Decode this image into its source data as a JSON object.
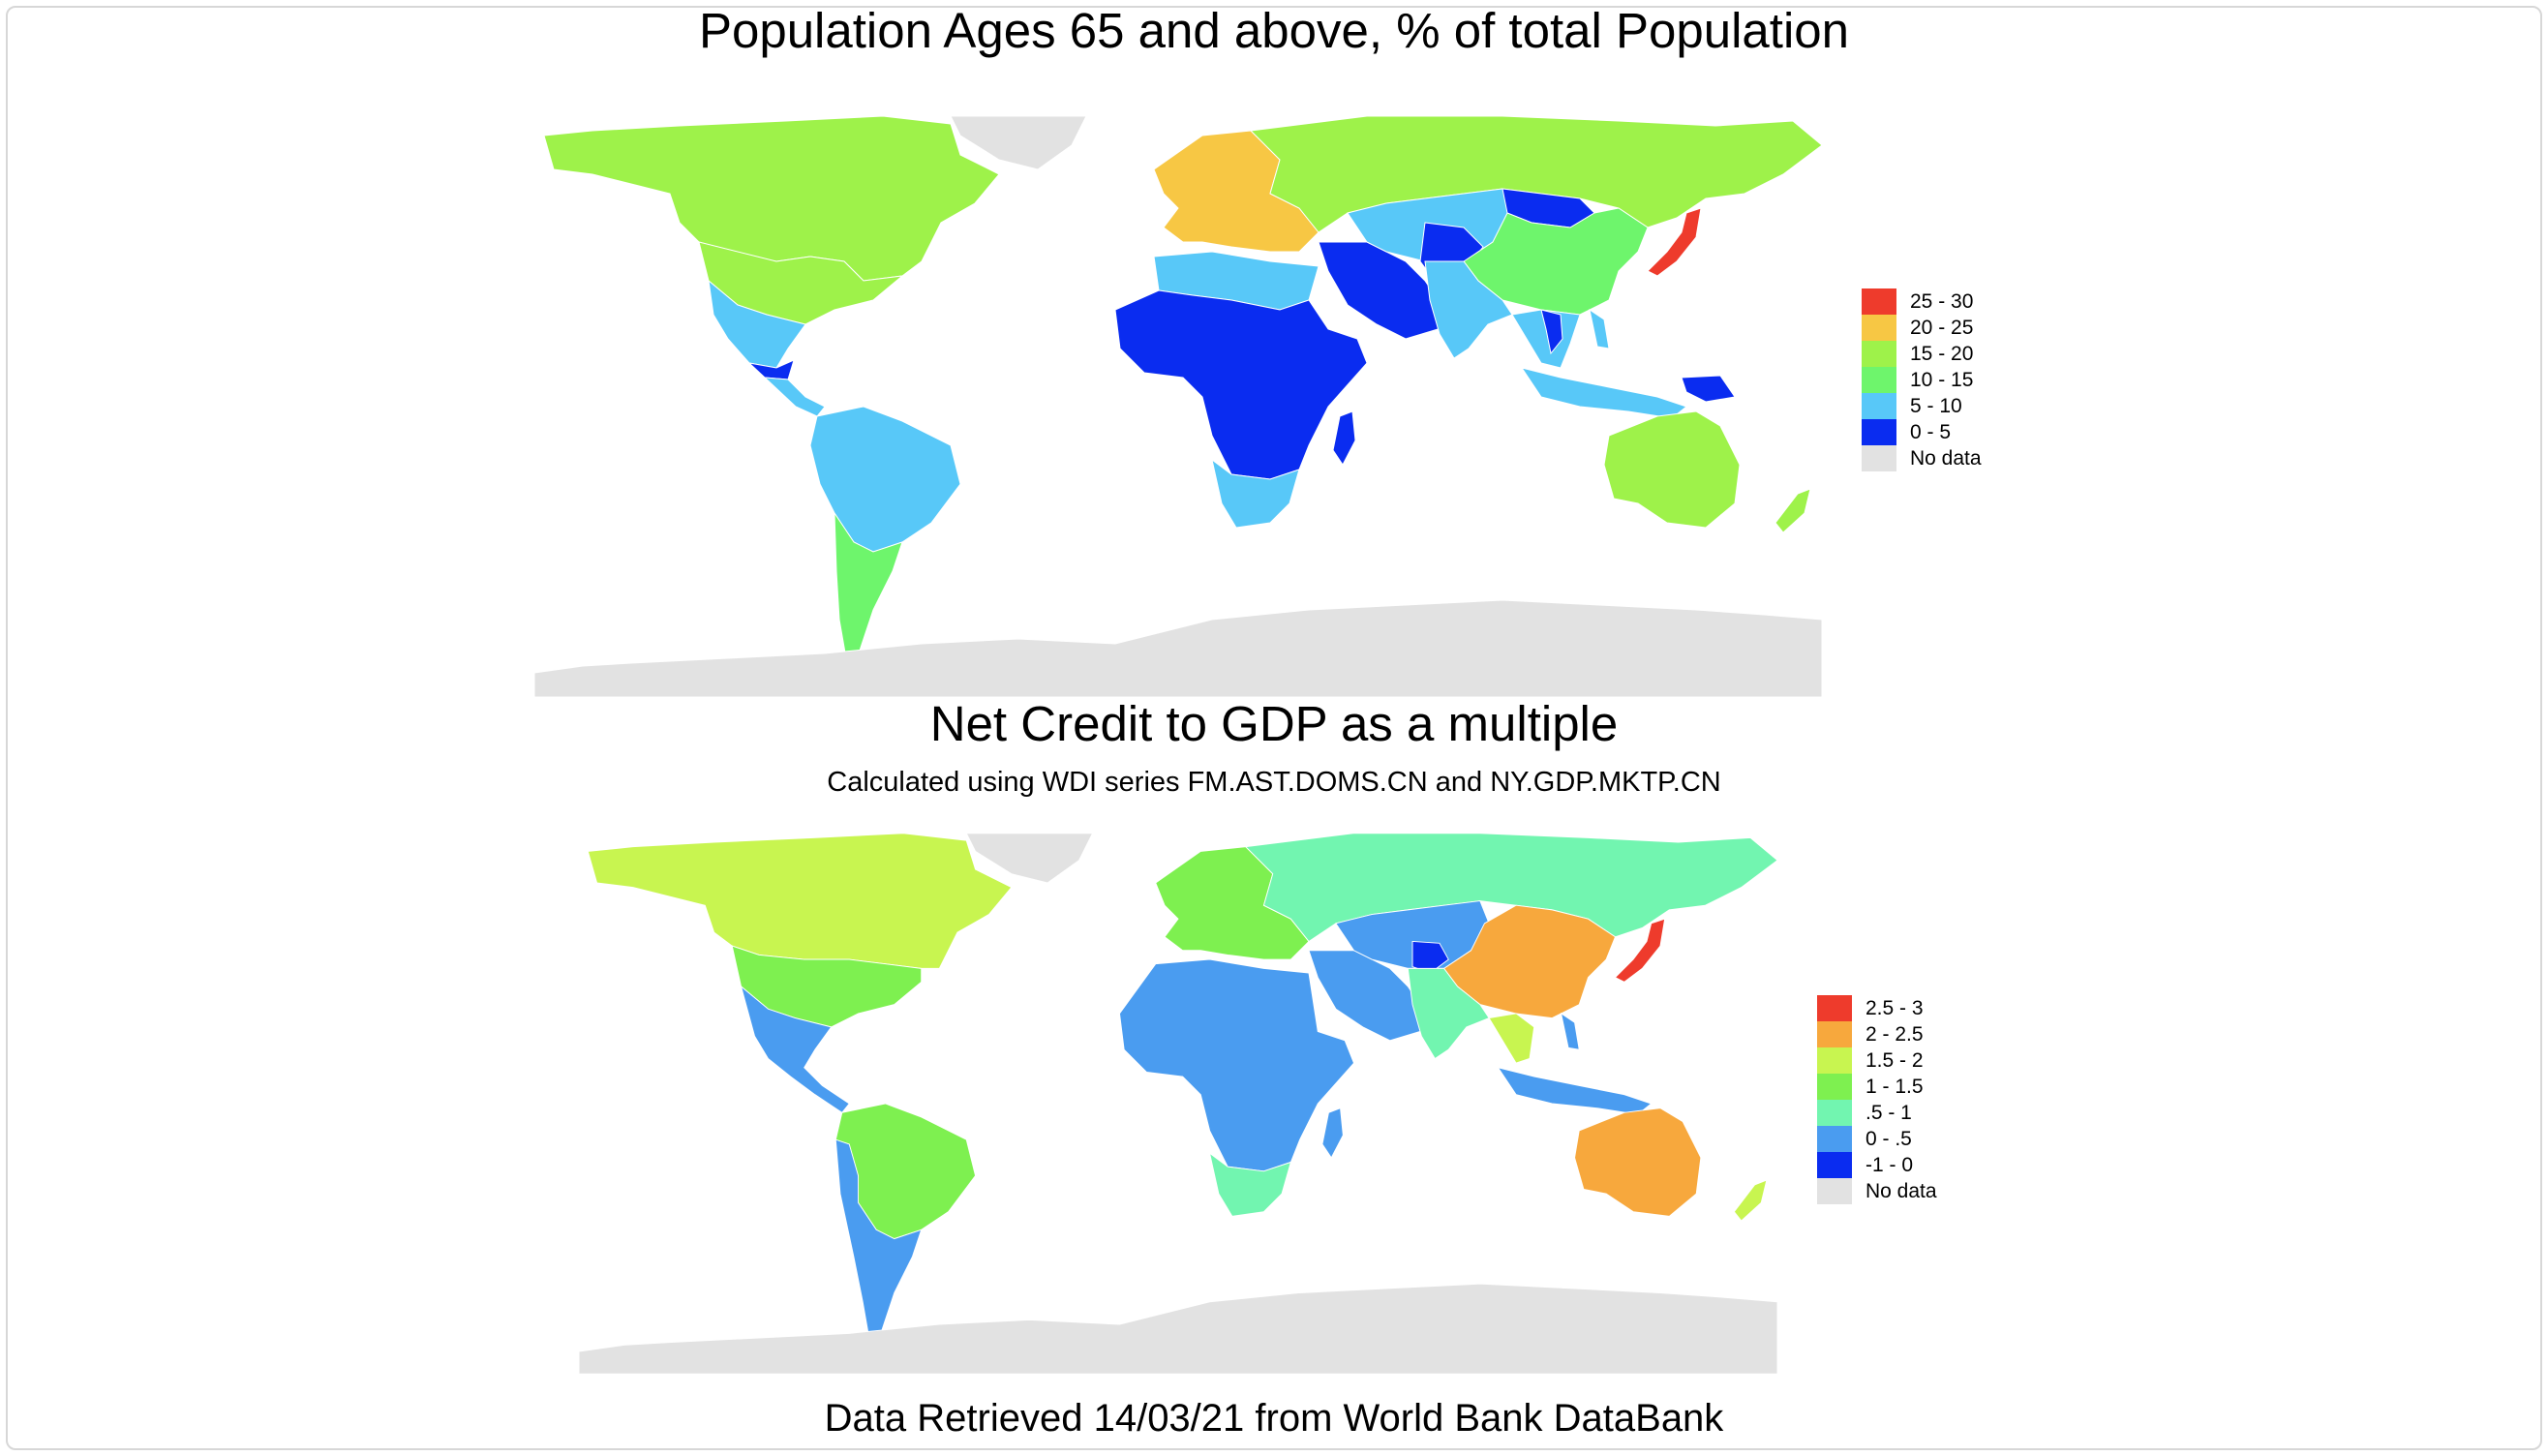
{
  "map1": {
    "title": "Population Ages 65 and above, % of total Population",
    "legend": [
      {
        "label": "25 - 30",
        "color": "#ee3b2c"
      },
      {
        "label": "20 - 25",
        "color": "#f7c744"
      },
      {
        "label": "15 - 20",
        "color": "#9ef24a"
      },
      {
        "label": "10 - 15",
        "color": "#6ef56c"
      },
      {
        "label": "5 - 10",
        "color": "#58c8f8"
      },
      {
        "label": "0 - 5",
        "color": "#0a2cf0"
      },
      {
        "label": "No data",
        "color": "#e2e2e2"
      }
    ],
    "regions": [
      {
        "name": "greenland",
        "fill": "#e2e2e2"
      },
      {
        "name": "north-america",
        "fill": "#9ef24a"
      },
      {
        "name": "central-america",
        "fill": "#58c8f8"
      },
      {
        "name": "guatemala",
        "fill": "#0a2cf0"
      },
      {
        "name": "south-america",
        "fill": "#58c8f8"
      },
      {
        "name": "southern-cone",
        "fill": "#6ef56c"
      },
      {
        "name": "western-europe",
        "fill": "#f7c744"
      },
      {
        "name": "russia",
        "fill": "#9ef24a"
      },
      {
        "name": "north-africa",
        "fill": "#58c8f8"
      },
      {
        "name": "sub-saharan-africa",
        "fill": "#0a2cf0"
      },
      {
        "name": "southern-africa",
        "fill": "#58c8f8"
      },
      {
        "name": "madagascar",
        "fill": "#0a2cf0"
      },
      {
        "name": "arabia",
        "fill": "#0a2cf0"
      },
      {
        "name": "central-asia",
        "fill": "#58c8f8"
      },
      {
        "name": "mongolia",
        "fill": "#0a2cf0"
      },
      {
        "name": "china",
        "fill": "#6ef56c"
      },
      {
        "name": "south-asia",
        "fill": "#58c8f8"
      },
      {
        "name": "southeast-asia",
        "fill": "#58c8f8"
      },
      {
        "name": "japan",
        "fill": "#ee3b2c"
      },
      {
        "name": "papua-new-guinea",
        "fill": "#0a2cf0"
      },
      {
        "name": "australia",
        "fill": "#9ef24a"
      },
      {
        "name": "new-zealand",
        "fill": "#9ef24a"
      },
      {
        "name": "antarctica",
        "fill": "#e2e2e2"
      }
    ]
  },
  "map2": {
    "title": "Net Credit to GDP as a multiple",
    "subtitle": "Calculated using WDI series FM.AST.DOMS.CN and NY.GDP.MKTP.CN",
    "legend": [
      {
        "label": "2.5 - 3",
        "color": "#ee3b2c"
      },
      {
        "label": "2 - 2.5",
        "color": "#f7a83d"
      },
      {
        "label": "1.5 - 2",
        "color": "#c8f550"
      },
      {
        "label": "1 - 1.5",
        "color": "#7ef050"
      },
      {
        "label": ".5 - 1",
        "color": "#72f5b0"
      },
      {
        "label": "0 - .5",
        "color": "#4a9cf0"
      },
      {
        "label": "-1 - 0",
        "color": "#0a2cf0"
      },
      {
        "label": "No data",
        "color": "#e2e2e2"
      }
    ],
    "regions": [
      {
        "name": "greenland",
        "fill": "#e2e2e2"
      },
      {
        "name": "canada",
        "fill": "#c8f550"
      },
      {
        "name": "usa",
        "fill": "#7ef050"
      },
      {
        "name": "central-america",
        "fill": "#4a9cf0"
      },
      {
        "name": "south-america",
        "fill": "#7ef050"
      },
      {
        "name": "southern-cone",
        "fill": "#4a9cf0"
      },
      {
        "name": "europe",
        "fill": "#7ef050"
      },
      {
        "name": "russia",
        "fill": "#72f5b0"
      },
      {
        "name": "africa",
        "fill": "#4a9cf0"
      },
      {
        "name": "southern-africa",
        "fill": "#72f5b0"
      },
      {
        "name": "madagascar",
        "fill": "#4a9cf0"
      },
      {
        "name": "middle-east",
        "fill": "#4a9cf0"
      },
      {
        "name": "central-asia",
        "fill": "#4a9cf0"
      },
      {
        "name": "afghanistan",
        "fill": "#0a2cf0"
      },
      {
        "name": "china",
        "fill": "#f7a83d"
      },
      {
        "name": "south-asia",
        "fill": "#72f5b0"
      },
      {
        "name": "southeast-asia",
        "fill": "#4a9cf0"
      },
      {
        "name": "japan",
        "fill": "#ee3b2c"
      },
      {
        "name": "australia",
        "fill": "#f7a83d"
      },
      {
        "name": "new-zealand",
        "fill": "#c8f550"
      },
      {
        "name": "antarctica",
        "fill": "#e2e2e2"
      }
    ]
  },
  "footer": "Data Retrieved 14/03/21 from World Bank DataBank"
}
